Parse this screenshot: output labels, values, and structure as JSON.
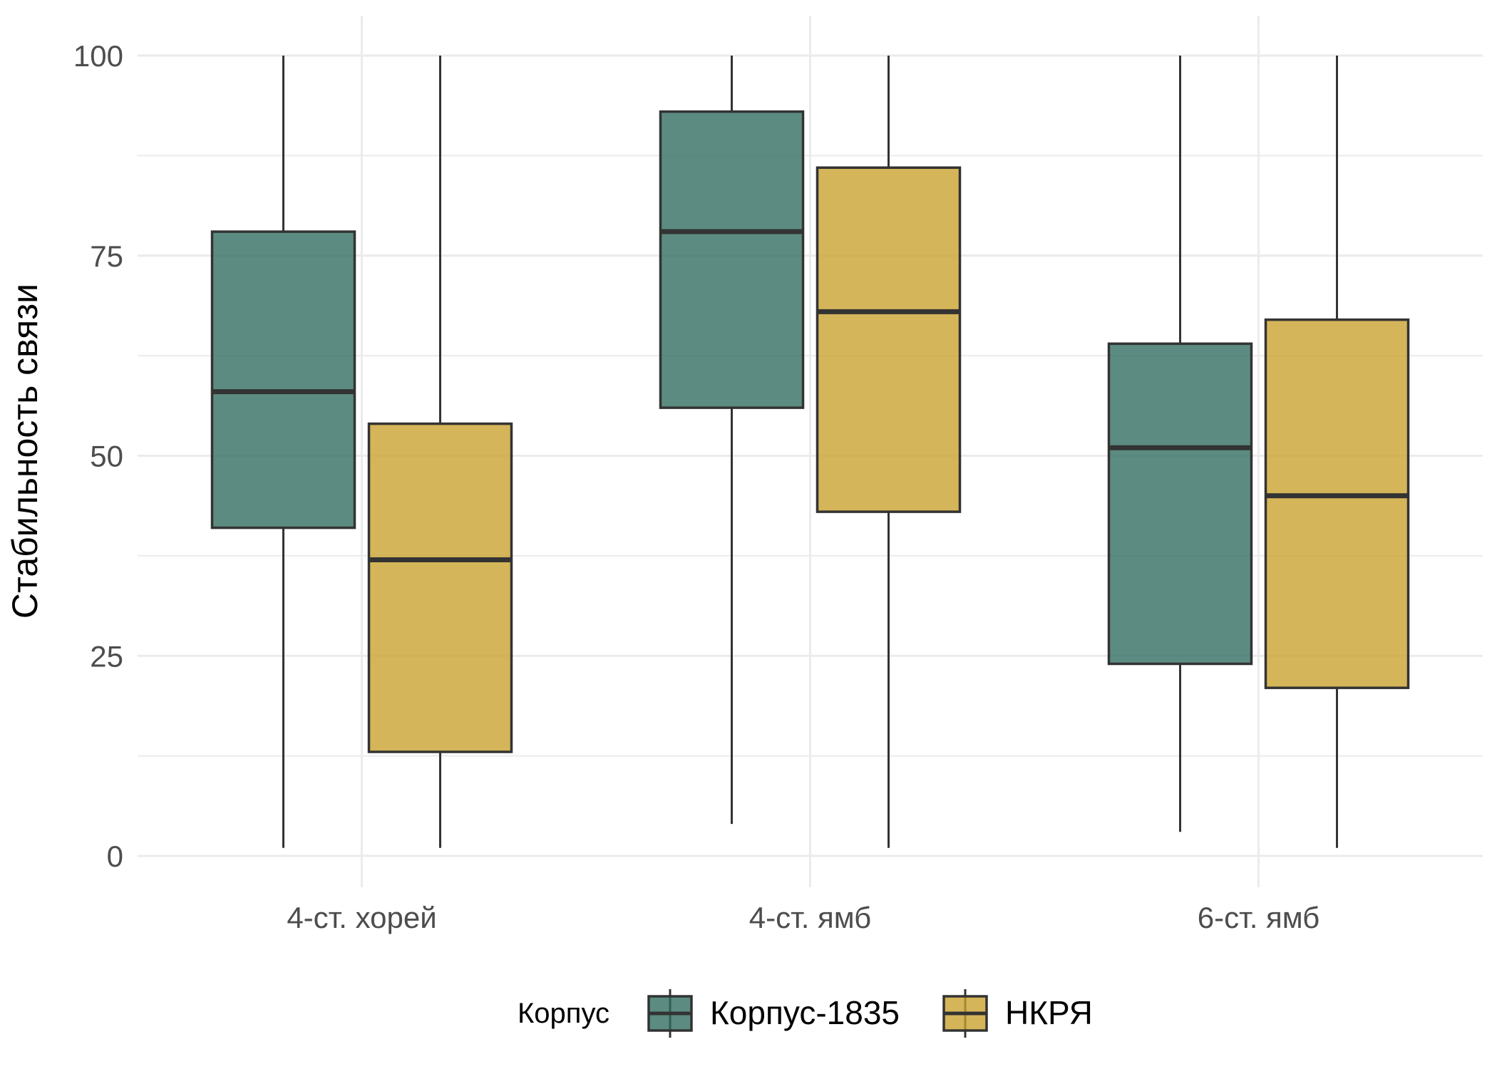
{
  "chart_data": {
    "type": "boxplot",
    "ylabel": "Стабильность связи",
    "xlabel": "",
    "ylim": [
      -3,
      101
    ],
    "yticks": [
      0,
      25,
      50,
      75,
      100
    ],
    "y_tick_labels": [
      "0",
      "25",
      "50",
      "75",
      "100"
    ],
    "grid": true,
    "legend_position": "bottom",
    "legend_title": "Корпус",
    "categories": [
      "4-ст. хорей",
      "4-ст. ямб",
      "6-ст. ямб"
    ],
    "series": [
      {
        "name": "Корпус-1835",
        "color": "#2e6b5e",
        "boxes": [
          {
            "min": 1,
            "q1": 41,
            "median": 58,
            "q3": 78,
            "max": 100
          },
          {
            "min": 4,
            "q1": 56,
            "median": 78,
            "q3": 93,
            "max": 100
          },
          {
            "min": 3,
            "q1": 24,
            "median": 51,
            "q3": 64,
            "max": 100
          }
        ]
      },
      {
        "name": "НКРЯ",
        "color": "#c9a02a",
        "boxes": [
          {
            "min": 1,
            "q1": 13,
            "median": 37,
            "q3": 54,
            "max": 100
          },
          {
            "min": 1,
            "q1": 43,
            "median": 68,
            "q3": 86,
            "max": 100
          },
          {
            "min": 1,
            "q1": 21,
            "median": 45,
            "q3": 67,
            "max": 100
          }
        ]
      }
    ]
  }
}
